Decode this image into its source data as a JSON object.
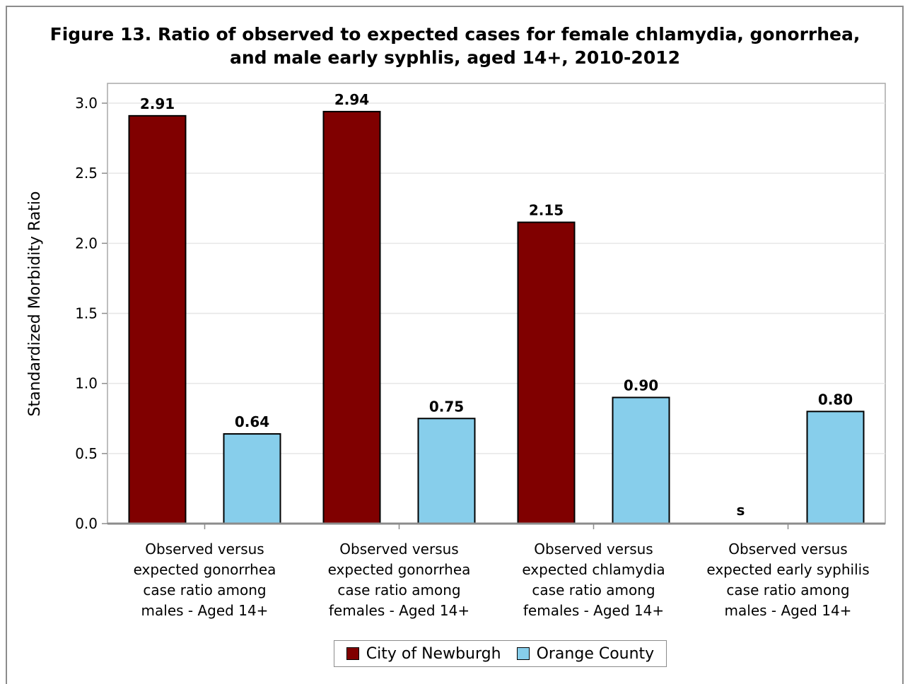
{
  "chart_data": {
    "type": "bar",
    "title": [
      "Figure 13. Ratio of observed to expected cases for female chlamydia, gonorrhea,",
      "and male early syphlis, aged 14+, 2010-2012"
    ],
    "ylabel": "Standardized Morbidity Ratio",
    "ylim": [
      0,
      3.0
    ],
    "yticks": [
      0.0,
      0.5,
      1.0,
      1.5,
      2.0,
      2.5,
      3.0
    ],
    "ytick_labels": [
      "0.0",
      "0.5",
      "1.0",
      "1.5",
      "2.0",
      "2.5",
      "3.0"
    ],
    "grid": true,
    "legend_position": "bottom",
    "categories": [
      [
        "Observed versus",
        "expected gonorrhea",
        "case ratio among",
        "males - Aged 14+"
      ],
      [
        "Observed versus",
        "expected gonorrhea",
        "case ratio among",
        "females - Aged 14+"
      ],
      [
        "Observed versus",
        "expected chlamydia",
        "case ratio among",
        "females - Aged 14+"
      ],
      [
        "Observed versus",
        "expected early syphilis",
        "case ratio among",
        "males - Aged 14+"
      ]
    ],
    "series": [
      {
        "name": "City of Newburgh",
        "color": "#800000",
        "values": [
          2.91,
          2.94,
          2.15,
          null
        ],
        "labels": [
          "2.91",
          "2.94",
          "2.15",
          "s"
        ]
      },
      {
        "name": "Orange County",
        "color": "#87CEEB",
        "values": [
          0.64,
          0.75,
          0.9,
          0.8
        ],
        "labels": [
          "0.64",
          "0.75",
          "0.90",
          "0.80"
        ]
      }
    ]
  }
}
